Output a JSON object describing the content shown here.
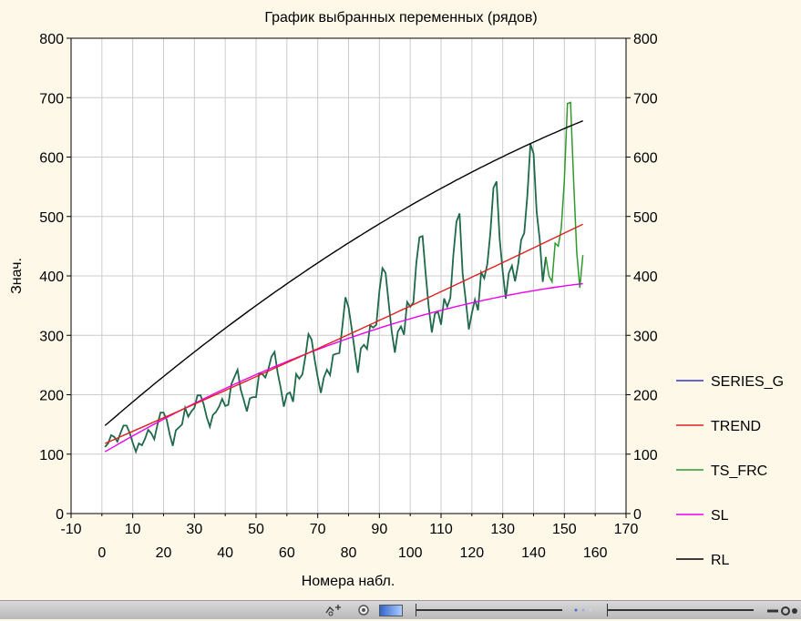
{
  "chart_data": {
    "type": "line",
    "title": "График выбранных переменных (рядов)",
    "xlabel": "Номера набл.",
    "ylabel": "Знач.",
    "xlim": [
      -10,
      170
    ],
    "ylim": [
      0,
      800
    ],
    "x_top_ticks": [
      "-10",
      "10",
      "30",
      "50",
      "70",
      "90",
      "110",
      "130",
      "150",
      "170"
    ],
    "x_bottom_ticks": [
      "0",
      "20",
      "40",
      "60",
      "80",
      "100",
      "120",
      "140",
      "160"
    ],
    "y_ticks": [
      "0",
      "100",
      "200",
      "300",
      "400",
      "500",
      "600",
      "700",
      "800"
    ],
    "grid": true,
    "legend_position": "right",
    "x_range": [
      1,
      156
    ],
    "series": [
      {
        "name": "SERIES_G",
        "color": "#3333cc",
        "base": "airline_monthly_passengers",
        "x_range": [
          1,
          144
        ],
        "values": [
          112,
          118,
          132,
          129,
          121,
          135,
          148,
          148,
          136,
          119,
          104,
          118,
          115,
          126,
          141,
          135,
          125,
          149,
          170,
          170,
          158,
          133,
          114,
          140,
          145,
          150,
          178,
          163,
          172,
          178,
          199,
          199,
          184,
          162,
          146,
          166,
          171,
          180,
          193,
          181,
          183,
          218,
          230,
          242,
          209,
          191,
          172,
          194,
          196,
          196,
          236,
          235,
          229,
          243,
          264,
          272,
          237,
          211,
          180,
          201,
          204,
          188,
          235,
          227,
          234,
          264,
          302,
          293,
          259,
          229,
          203,
          229,
          242,
          233,
          267,
          269,
          270,
          315,
          364,
          347,
          312,
          274,
          237,
          278,
          284,
          277,
          317,
          313,
          318,
          374,
          413,
          405,
          355,
          306,
          271,
          306,
          315,
          301,
          356,
          348,
          355,
          422,
          465,
          467,
          404,
          347,
          305,
          336,
          340,
          318,
          362,
          348,
          363,
          435,
          491,
          505,
          404,
          359,
          310,
          337,
          360,
          342,
          406,
          396,
          420,
          472,
          548,
          559,
          463,
          407,
          362,
          405,
          417,
          391,
          419,
          461,
          472,
          535,
          622,
          606,
          508,
          461,
          390,
          432
        ]
      },
      {
        "name": "TREND",
        "color": "#e02020",
        "model": "quadratic",
        "x_range": [
          1,
          156
        ],
        "points": [
          [
            1,
            118
          ],
          [
            150,
            472
          ],
          [
            156,
            487
          ]
        ]
      },
      {
        "name": "TS_FRC",
        "color": "#2e9a2e",
        "extends": "SERIES_G",
        "x_range": [
          1,
          156
        ],
        "forecast_x": [
          145,
          146,
          147,
          148,
          149,
          150,
          151,
          152,
          153,
          154,
          155,
          156
        ],
        "forecast_values": [
          400,
          390,
          455,
          450,
          480,
          560,
          690,
          692,
          560,
          440,
          380,
          435
        ]
      },
      {
        "name": "SL",
        "color": "#ee00ee",
        "model": "quadratic",
        "x_range": [
          1,
          156
        ],
        "points": [
          [
            1,
            104
          ],
          [
            150,
            383
          ],
          [
            156,
            387
          ]
        ]
      },
      {
        "name": "RL",
        "color": "#000000",
        "model": "quadratic",
        "x_range": [
          1,
          156
        ],
        "points": [
          [
            1,
            148
          ],
          [
            150,
            648
          ],
          [
            156,
            661
          ]
        ]
      }
    ]
  },
  "statusbar": {
    "icons": [
      "zoom-tool-icon",
      "gear-icon",
      "color-swatch-icon",
      "slider-handle-icon",
      "dots-icon",
      "slider-handle-icon",
      "key-icon"
    ]
  }
}
